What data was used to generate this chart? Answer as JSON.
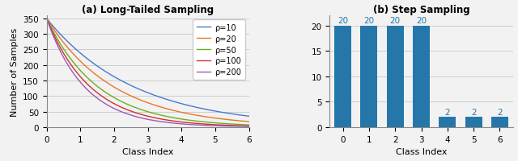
{
  "title_left": "(a) Long-Tailed Sampling",
  "title_right": "(b) Step Sampling",
  "xlabel": "Class Index",
  "ylabel_left": "Number of Samples",
  "num_classes": 7,
  "lt_rho_values": [
    10,
    20,
    50,
    100,
    200
  ],
  "lt_colors": [
    "#4878cf",
    "#e87722",
    "#6aaf1f",
    "#d32f2f",
    "#9b59b6"
  ],
  "lt_max_samples": 350,
  "step_values": [
    20,
    20,
    20,
    20,
    2,
    2,
    2
  ],
  "step_bar_color": "#2577aa",
  "bar_ylim": [
    0,
    22
  ],
  "bar_yticks": [
    0,
    5,
    10,
    15,
    20
  ],
  "lt_ylim": [
    0,
    360
  ],
  "lt_yticks": [
    0,
    50,
    100,
    150,
    200,
    250,
    300,
    350
  ],
  "label_color": "#2577aa",
  "bg_color": "#f2f2f2"
}
